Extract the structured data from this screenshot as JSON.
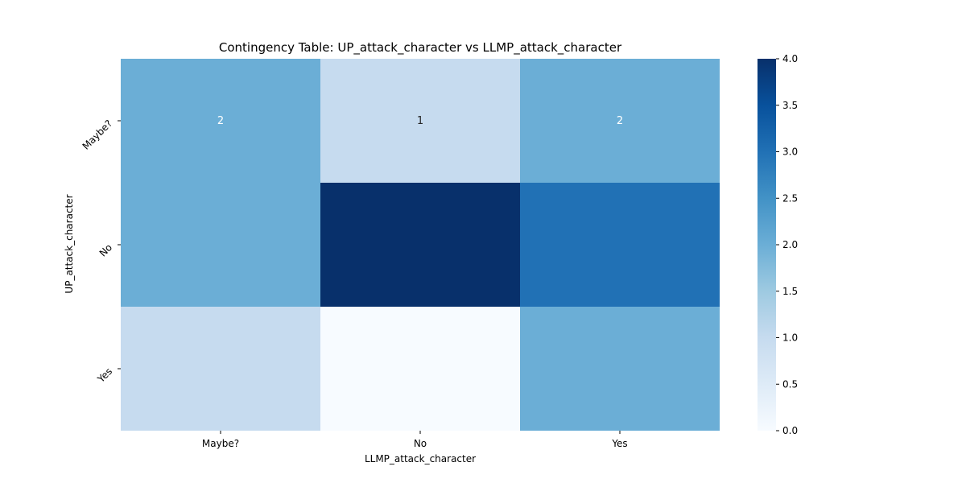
{
  "chart_data": {
    "type": "heatmap",
    "title": "Contingency Table: UP_attack_character vs LLMP_attack_character",
    "xlabel": "LLMP_attack_character",
    "ylabel": "UP_attack_character",
    "x_categories": [
      "Maybe?",
      "No",
      "Yes"
    ],
    "y_categories": [
      "Maybe?",
      "No",
      "Yes"
    ],
    "values": [
      [
        2,
        1,
        2
      ],
      [
        2,
        4,
        3
      ],
      [
        1,
        0,
        2
      ]
    ],
    "annotated_cells": [
      {
        "row": 0,
        "col": 0,
        "text": "2"
      },
      {
        "row": 0,
        "col": 1,
        "text": "1"
      },
      {
        "row": 0,
        "col": 2,
        "text": "2"
      }
    ],
    "colormap": "Blues",
    "colorbar": {
      "range": [
        0.0,
        4.0
      ],
      "ticks": [
        "0.0",
        "0.5",
        "1.0",
        "1.5",
        "2.0",
        "2.5",
        "3.0",
        "3.5",
        "4.0"
      ]
    },
    "colors": {
      "0": "#f7fbff",
      "1": "#c6dbef",
      "2": "#6baed6",
      "3": "#2171b5",
      "4": "#08306b"
    }
  }
}
